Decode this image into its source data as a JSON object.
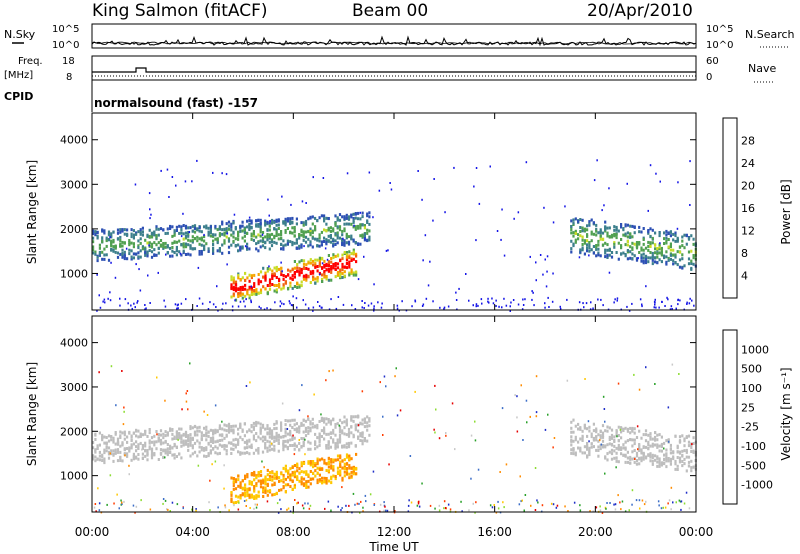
{
  "header": {
    "station": "King Salmon (fitACF)",
    "beam": "Beam 00",
    "date": "20/Apr/2010"
  },
  "top_panels": {
    "nsky_label": "N.Sky",
    "nsearch_label": "N.Search",
    "noise_ticks": [
      "10^5",
      "10^0"
    ],
    "freq_label_line1": "Freq.",
    "freq_label_line2": "[MHz]",
    "freq_ticks": [
      "18",
      "8"
    ],
    "nave_label": "Nave",
    "nave_ticks": [
      "60",
      "0"
    ],
    "cpid_label": "CPID",
    "cpid_text": "normalsound (fast) -157"
  },
  "time_axis": {
    "label": "Time UT",
    "ticks": [
      "00:00",
      "04:00",
      "08:00",
      "12:00",
      "16:00",
      "20:00",
      "00:00"
    ]
  },
  "power_panel": {
    "ylabel": "Slant Range [km]",
    "yticks": [
      "1000",
      "2000",
      "3000",
      "4000"
    ],
    "colorbar_label": "Power [dB]",
    "colorbar_ticks": [
      "4",
      "8",
      "12",
      "16",
      "20",
      "24",
      "28"
    ]
  },
  "velocity_panel": {
    "ylabel": "Slant Range [km]",
    "yticks": [
      "1000",
      "2000",
      "3000",
      "4000"
    ],
    "colorbar_label": "Velocity [m s⁻¹]",
    "colorbar_ticks": [
      "1000",
      "500",
      "100",
      "25",
      "-25",
      "-100",
      "-500",
      "-1000"
    ]
  },
  "colors": {
    "power_scale": [
      "#1414e6",
      "#2d50b4",
      "#3c7f8c",
      "#50a050",
      "#c8dc28",
      "#f5a500",
      "#f06414",
      "#ff0000"
    ],
    "velocity_scale": [
      "#1e2dc8",
      "#3c6ec8",
      "#28a028",
      "#8cdc32",
      "#c8c8c8",
      "#ffc800",
      "#ff8c00",
      "#ff3c00",
      "#e60000"
    ],
    "ground_scatter": "#bebebe"
  },
  "chart_data": [
    {
      "type": "heatmap",
      "panel": "power",
      "xlabel": "Time UT",
      "ylabel": "Slant Range [km]",
      "xlim": [
        "00:00",
        "24:00"
      ],
      "ylim": [
        180,
        4600
      ],
      "zlabel": "Power [dB]",
      "zlim": [
        0,
        32
      ],
      "bands": [
        {
          "t_start": 0.0,
          "t_end": 11.0,
          "range_center_start": 1650,
          "range_center_end": 2050,
          "range_halfwidth": 350,
          "power": 10
        },
        {
          "t_start": 5.5,
          "t_end": 10.5,
          "range_center_start": 700,
          "range_center_end": 1300,
          "range_halfwidth": 300,
          "power": 26
        },
        {
          "t_start": 19.0,
          "t_end": 24.0,
          "range_center_start": 1900,
          "range_center_end": 1500,
          "range_halfwidth": 400,
          "power": 11
        }
      ]
    },
    {
      "type": "heatmap",
      "panel": "velocity",
      "xlabel": "Time UT",
      "ylabel": "Slant Range [km]",
      "xlim": [
        "00:00",
        "24:00"
      ],
      "ylim": [
        180,
        4600
      ],
      "zlabel": "Velocity [m s⁻¹]",
      "zlim": [
        -1000,
        1000
      ],
      "bands": [
        {
          "t_start": 0.0,
          "t_end": 11.0,
          "range_center_start": 1650,
          "range_center_end": 2050,
          "range_halfwidth": 350,
          "velocity": 0,
          "ground_scatter": true
        },
        {
          "t_start": 5.5,
          "t_end": 10.5,
          "range_center_start": 700,
          "range_center_end": 1300,
          "range_halfwidth": 300,
          "velocity": -100
        },
        {
          "t_start": 19.0,
          "t_end": 24.0,
          "range_center_start": 1900,
          "range_center_end": 1500,
          "range_halfwidth": 400,
          "velocity": 0,
          "ground_scatter": true
        }
      ]
    },
    {
      "type": "line",
      "panel": "noise",
      "series": [
        {
          "name": "N.Sky"
        },
        {
          "name": "N.Search"
        }
      ],
      "ylim": [
        "10^0",
        "10^5"
      ]
    },
    {
      "type": "line",
      "panel": "frequency",
      "series": [
        {
          "name": "Freq."
        },
        {
          "name": "Nave"
        }
      ],
      "ylim": [
        8,
        18
      ]
    }
  ]
}
